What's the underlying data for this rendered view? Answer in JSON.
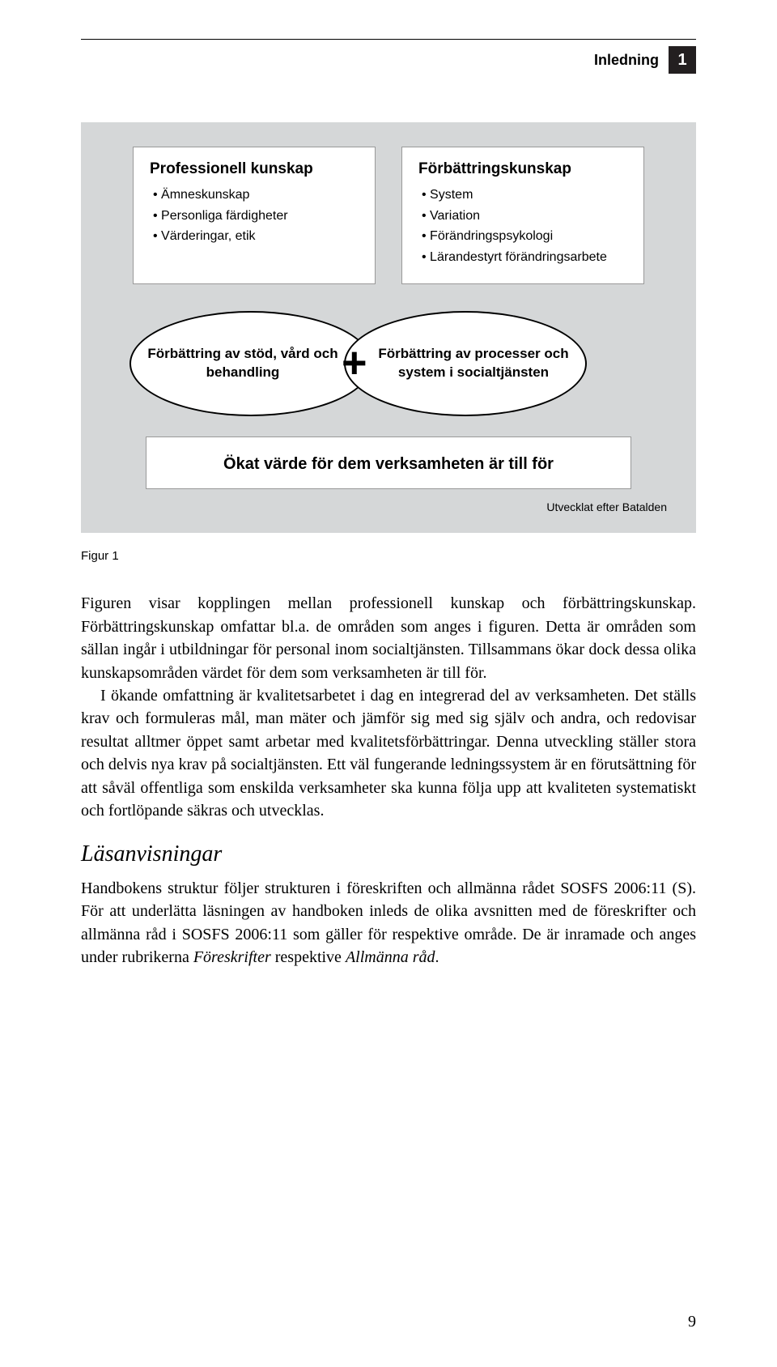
{
  "header": {
    "title": "Inledning",
    "chapter_num": "1"
  },
  "diagram": {
    "box_left": {
      "title": "Professionell kunskap",
      "items": [
        "Ämneskunskap",
        "Personliga färdigheter",
        "Värderingar, etik"
      ]
    },
    "box_right": {
      "title": "Förbättringskunskap",
      "items": [
        "System",
        "Variation",
        "Förändringspsykologi",
        "Lärandestyrt förändringsarbete"
      ]
    },
    "ellipse_left": "Förbättring av stöd, vård och behandling",
    "plus": "+",
    "ellipse_right": "Förbättring av processer och system i socialtjänsten",
    "value_box": "Ökat värde för dem verksamheten är till för",
    "credit": "Utvecklat efter Batalden",
    "colors": {
      "panel_bg": "#d5d7d8",
      "box_bg": "#ffffff",
      "border": "#999999",
      "ellipse_border": "#000000"
    }
  },
  "figure_label": "Figur 1",
  "body": {
    "p1": "Figuren visar kopplingen mellan professionell kunskap och förbättrings­kunskap. Förbättringskunskap omfattar bl.a. de områden som anges i figu­ren. Detta är områden som sällan ingår i utbildningar för personal inom so­cialtjänsten. Tillsammans ökar dock dessa olika kunskapsområden värdet för dem som verksamheten är till för.",
    "p2": "I ökande omfattning är kvalitetsarbetet i dag en integrerad del av verk­samheten. Det ställs krav och formuleras mål, man mäter och jämför sig med sig själv och andra, och redovisar resultat alltmer öppet samt arbetar med kvalitetsförbättringar. Denna utveckling ställer stora och delvis nya krav på socialtjänsten. Ett väl fungerande ledningssystem är en förutsätt­ning för att såväl offentliga som enskilda verksamheter ska kunna följa upp att kvaliteten systematiskt och fortlöpande säkras och utvecklas.",
    "subhead": "Läsanvisningar",
    "p3a": "Handbokens struktur följer strukturen i föreskriften och allmänna rådet SOSFS 2006:11 (S). För att underlätta läsningen av handboken inleds de olika avsnitten med de föreskrifter och allmänna råd i SOSFS 2006:11 som gäller för respektive område. De är inramade och anges under rubrikerna ",
    "p3_i1": "Föreskrifter",
    "p3b": " respektive ",
    "p3_i2": "Allmänna råd",
    "p3c": "."
  },
  "page_number": "9"
}
